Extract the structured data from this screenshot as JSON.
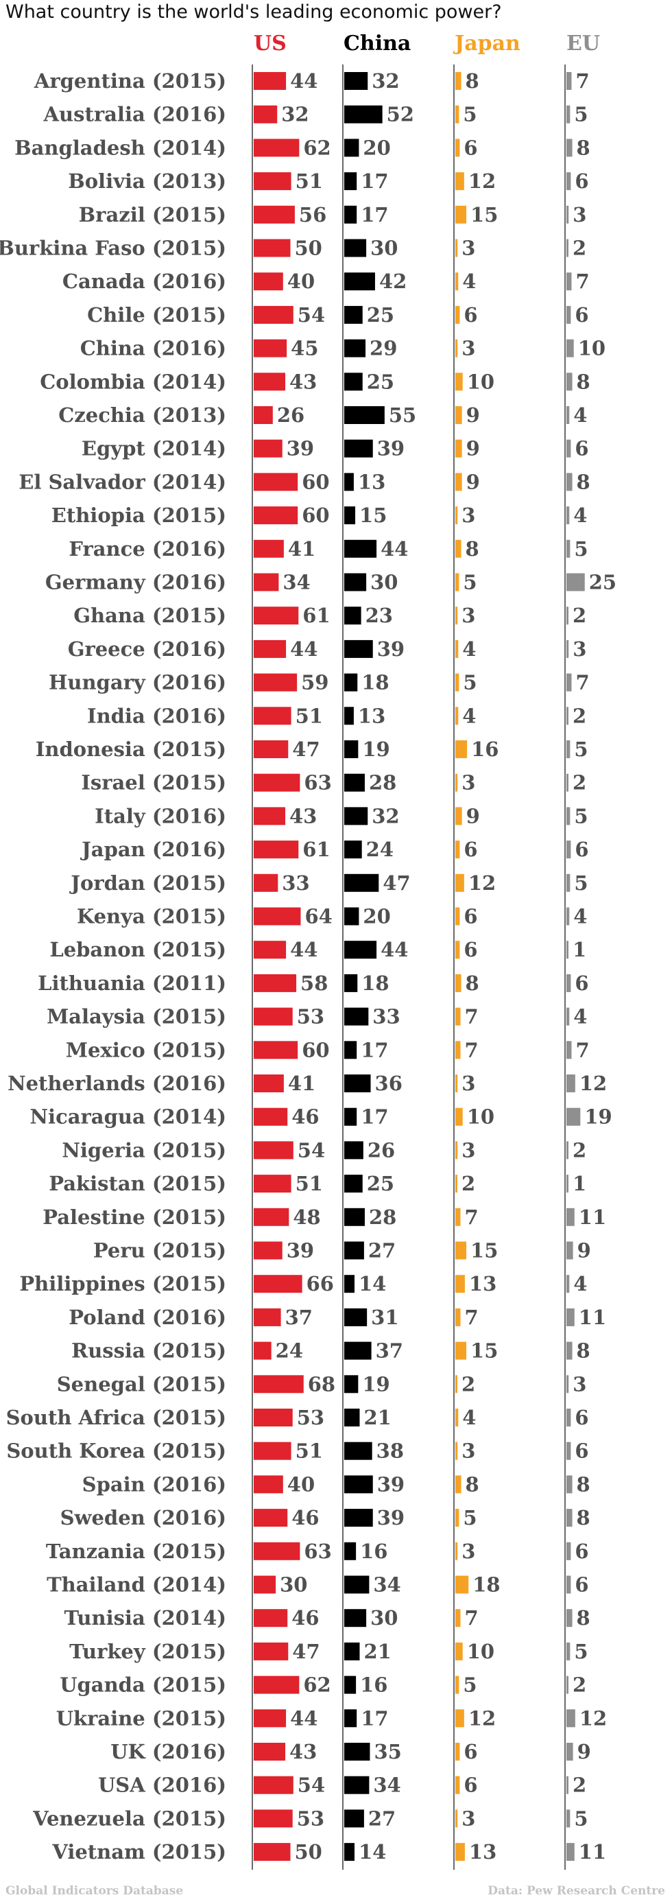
{
  "chart_data": {
    "type": "bar",
    "title": "What country is the world's leading economic power?",
    "series_names": [
      "US",
      "China",
      "Japan",
      "EU"
    ],
    "colors": {
      "US": "#e0232d",
      "China": "#000000",
      "Japan": "#f5a224",
      "EU": "#8f8f8f"
    },
    "categories": [
      "Argentina (2015)",
      "Australia (2016)",
      "Bangladesh (2014)",
      "Bolivia (2013)",
      "Brazil (2015)",
      "Burkina Faso (2015)",
      "Canada (2016)",
      "Chile (2015)",
      "China (2016)",
      "Colombia (2014)",
      "Czechia (2013)",
      "Egypt (2014)",
      "El Salvador (2014)",
      "Ethiopia (2015)",
      "France (2016)",
      "Germany (2016)",
      "Ghana (2015)",
      "Greece (2016)",
      "Hungary (2016)",
      "India (2016)",
      "Indonesia (2015)",
      "Israel (2015)",
      "Italy (2016)",
      "Japan (2016)",
      "Jordan (2015)",
      "Kenya (2015)",
      "Lebanon (2015)",
      "Lithuania (2011)",
      "Malaysia (2015)",
      "Mexico (2015)",
      "Netherlands (2016)",
      "Nicaragua (2014)",
      "Nigeria (2015)",
      "Pakistan (2015)",
      "Palestine (2015)",
      "Peru (2015)",
      "Philippines (2015)",
      "Poland (2016)",
      "Russia (2015)",
      "Senegal (2015)",
      "South Africa (2015)",
      "South Korea (2015)",
      "Spain (2016)",
      "Sweden (2016)",
      "Tanzania (2015)",
      "Thailand (2014)",
      "Tunisia (2014)",
      "Turkey (2015)",
      "Uganda (2015)",
      "Ukraine (2015)",
      "UK (2016)",
      "USA (2016)",
      "Venezuela (2015)",
      "Vietnam (2015)"
    ],
    "series": [
      {
        "name": "US",
        "values": [
          44,
          32,
          62,
          51,
          56,
          50,
          40,
          54,
          45,
          43,
          26,
          39,
          60,
          60,
          41,
          34,
          61,
          44,
          59,
          51,
          47,
          63,
          43,
          61,
          33,
          64,
          44,
          58,
          53,
          60,
          41,
          46,
          54,
          51,
          48,
          39,
          66,
          37,
          24,
          68,
          53,
          51,
          40,
          46,
          63,
          30,
          46,
          47,
          62,
          44,
          43,
          54,
          53,
          50
        ]
      },
      {
        "name": "China",
        "values": [
          32,
          52,
          20,
          17,
          17,
          30,
          42,
          25,
          29,
          25,
          55,
          39,
          13,
          15,
          44,
          30,
          23,
          39,
          18,
          13,
          19,
          28,
          32,
          24,
          47,
          20,
          44,
          18,
          33,
          17,
          36,
          17,
          26,
          25,
          28,
          27,
          14,
          31,
          37,
          19,
          21,
          38,
          39,
          39,
          16,
          34,
          30,
          21,
          16,
          17,
          35,
          34,
          27,
          14
        ]
      },
      {
        "name": "Japan",
        "values": [
          8,
          5,
          6,
          12,
          15,
          3,
          4,
          6,
          3,
          10,
          9,
          9,
          9,
          3,
          8,
          5,
          3,
          4,
          5,
          4,
          16,
          3,
          9,
          6,
          12,
          6,
          6,
          8,
          7,
          7,
          3,
          10,
          3,
          2,
          7,
          15,
          13,
          7,
          15,
          2,
          4,
          3,
          8,
          5,
          3,
          18,
          7,
          10,
          5,
          12,
          6,
          6,
          3,
          13
        ]
      },
      {
        "name": "EU",
        "values": [
          7,
          5,
          8,
          6,
          3,
          2,
          7,
          6,
          10,
          8,
          4,
          6,
          8,
          4,
          5,
          25,
          2,
          3,
          7,
          2,
          5,
          2,
          5,
          6,
          5,
          4,
          1,
          6,
          4,
          7,
          12,
          19,
          2,
          1,
          11,
          9,
          4,
          11,
          8,
          3,
          6,
          6,
          8,
          8,
          6,
          6,
          8,
          5,
          2,
          12,
          9,
          2,
          5,
          11
        ]
      }
    ]
  },
  "footer": {
    "left": "Global Indicators Database",
    "right": "Data: Pew Research Centre"
  }
}
